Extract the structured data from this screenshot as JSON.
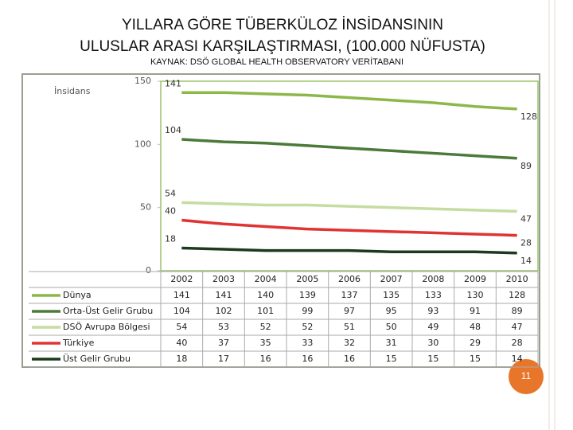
{
  "chart_data": {
    "type": "line",
    "title": [
      "YILLARA GÖRE TÜBERKÜLOZ İNSİDANSININ",
      "ULUSLAR ARASI KARŞILAŞTIRMASI, (100.000 NÜFUSTA)"
    ],
    "subtitle": "KAYNAK: DSÖ GLOBAL HEALTH OBSERVATORY VERİTABANI",
    "y_label": "İnsidans",
    "categories": [
      "2002",
      "2003",
      "2004",
      "2005",
      "2006",
      "2007",
      "2008",
      "2009",
      "2010"
    ],
    "series": [
      {
        "name": "Dünya",
        "color": "#8cb84a",
        "values": [
          141,
          141,
          140,
          139,
          137,
          135,
          133,
          130,
          128
        ]
      },
      {
        "name": "Orta-Üst Gelir Grubu",
        "color": "#4b7a3a",
        "values": [
          104,
          102,
          101,
          99,
          97,
          95,
          93,
          91,
          89
        ]
      },
      {
        "name": "DSÖ Avrupa Bölgesi",
        "color": "#c5dca2",
        "values": [
          54,
          53,
          52,
          52,
          51,
          50,
          49,
          48,
          47
        ]
      },
      {
        "name": "Türkiye",
        "color": "#e03434",
        "values": [
          40,
          37,
          35,
          33,
          32,
          31,
          30,
          29,
          28
        ]
      },
      {
        "name": "Üst Gelir Grubu",
        "color": "#1c3a1c",
        "values": [
          18,
          17,
          16,
          16,
          16,
          15,
          15,
          15,
          14
        ]
      }
    ],
    "ylim": [
      0,
      150
    ],
    "yticks": [
      0,
      50,
      100,
      150
    ],
    "grid": false
  },
  "page_number": "11"
}
